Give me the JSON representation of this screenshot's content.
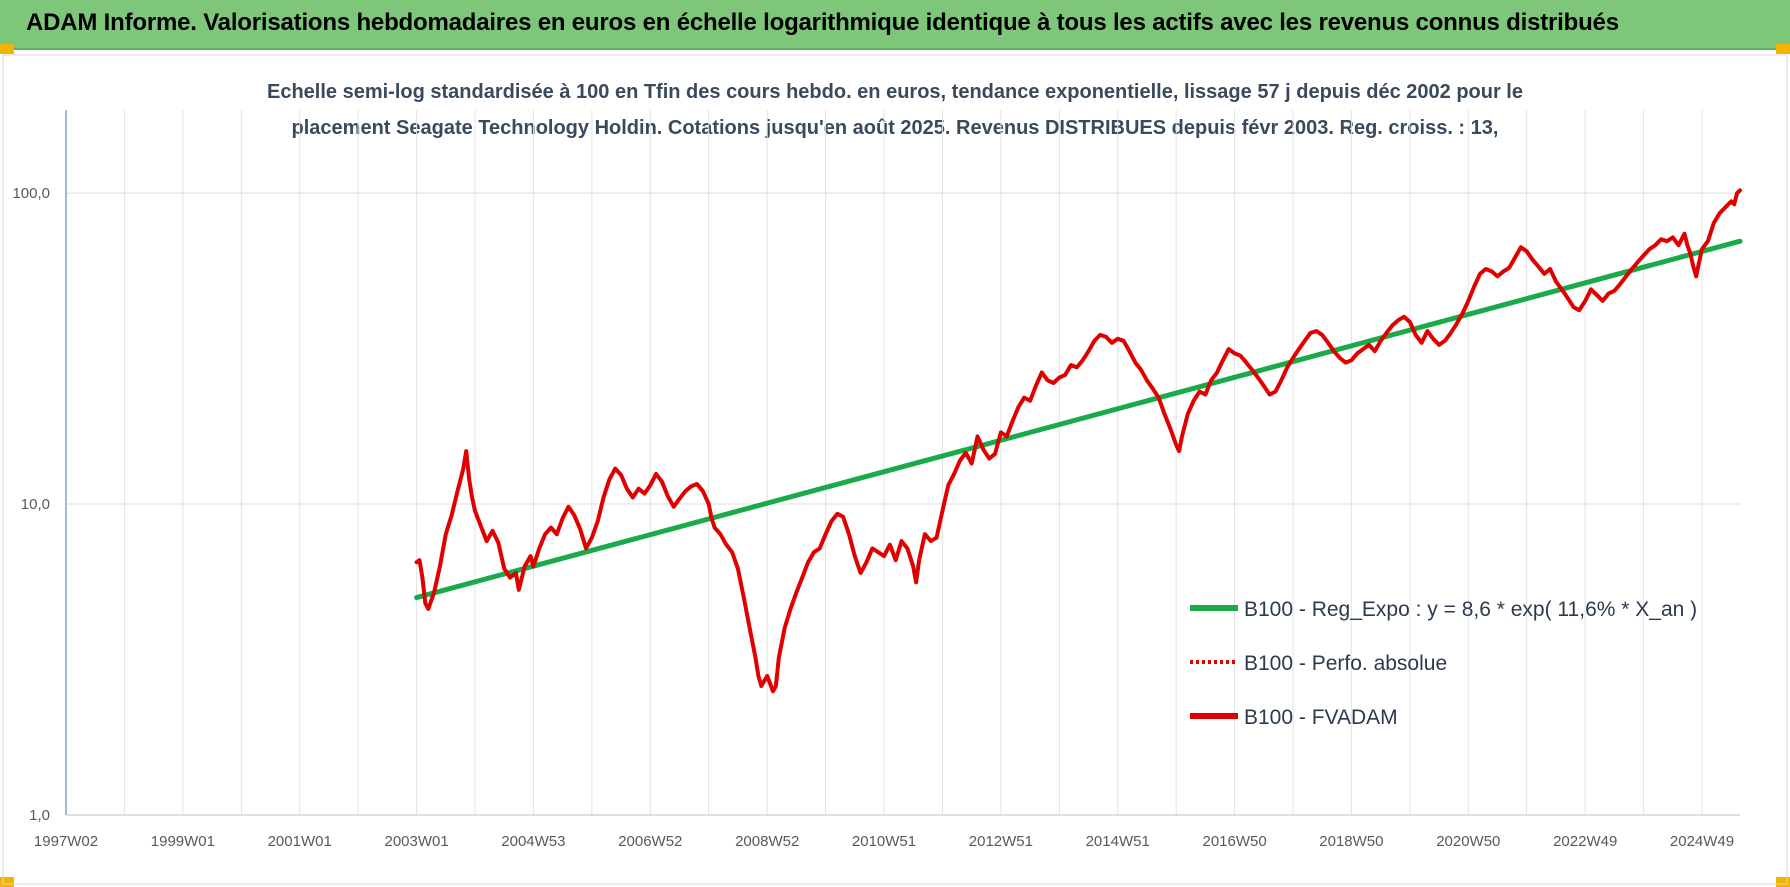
{
  "header": {
    "title": "ADAM Informe. Valorisations hebdomadaires en euros en échelle logarithmique identique à tous les actifs avec les revenus connus distribués"
  },
  "chart_data": {
    "type": "line",
    "title_lines": [
      "Echelle semi-log standardisée à 100 en Tfin des cours hebdo. en euros, tendance exponentielle, lissage 57 j depuis déc 2002 pour le",
      "placement Seagate Technology Holdin. Cotations jusqu'en août 2025. Revenus DISTRIBUES depuis févr 2003. Reg. croiss. : 13,"
    ],
    "y_scale": "log",
    "ylim": [
      1,
      185
    ],
    "y_ticks": [
      {
        "value": 1,
        "label": "1,0"
      },
      {
        "value": 10,
        "label": "10,0"
      },
      {
        "value": 100,
        "label": "100,0"
      }
    ],
    "xlim": [
      1997.0,
      2025.65
    ],
    "x_ticks": [
      {
        "value": 1997.0,
        "label": "1997W02"
      },
      {
        "value": 1999.0,
        "label": "1999W01"
      },
      {
        "value": 2001.0,
        "label": "2001W01"
      },
      {
        "value": 2003.0,
        "label": "2003W01"
      },
      {
        "value": 2005.0,
        "label": "2004W53"
      },
      {
        "value": 2007.0,
        "label": "2006W52"
      },
      {
        "value": 2009.0,
        "label": "2008W52"
      },
      {
        "value": 2011.0,
        "label": "2010W51"
      },
      {
        "value": 2013.0,
        "label": "2012W51"
      },
      {
        "value": 2015.0,
        "label": "2014W51"
      },
      {
        "value": 2017.0,
        "label": "2016W50"
      },
      {
        "value": 2019.0,
        "label": "2018W50"
      },
      {
        "value": 2021.0,
        "label": "2020W50"
      },
      {
        "value": 2023.0,
        "label": "2022W49"
      },
      {
        "value": 2025.0,
        "label": "2024W49"
      }
    ],
    "grid": true,
    "legend_position": "bottom-right",
    "series": [
      {
        "name": "B100 - Reg_Expo : y = 8,6 * exp( 11,6% *  X_an )",
        "color": "#1aaa4a",
        "style": "solid",
        "points": [
          [
            2003.0,
            5.0
          ],
          [
            2025.65,
            70.0
          ]
        ]
      },
      {
        "name": "B100 - Perfo. absolue",
        "color": "#e00000",
        "style": "dotted",
        "points": []
      },
      {
        "name": "B100 - FVADAM",
        "color": "#e00000",
        "style": "solid",
        "points": [
          [
            2003.0,
            6.5
          ],
          [
            2003.05,
            6.6
          ],
          [
            2003.1,
            5.8
          ],
          [
            2003.15,
            4.8
          ],
          [
            2003.2,
            4.6
          ],
          [
            2003.3,
            5.2
          ],
          [
            2003.4,
            6.3
          ],
          [
            2003.5,
            8.0
          ],
          [
            2003.6,
            9.2
          ],
          [
            2003.7,
            11.0
          ],
          [
            2003.8,
            13.0
          ],
          [
            2003.85,
            14.8
          ],
          [
            2003.9,
            12.0
          ],
          [
            2003.95,
            10.5
          ],
          [
            2004.0,
            9.5
          ],
          [
            2004.1,
            8.5
          ],
          [
            2004.2,
            7.6
          ],
          [
            2004.3,
            8.2
          ],
          [
            2004.4,
            7.5
          ],
          [
            2004.5,
            6.2
          ],
          [
            2004.6,
            5.8
          ],
          [
            2004.7,
            6.0
          ],
          [
            2004.75,
            5.3
          ],
          [
            2004.85,
            6.3
          ],
          [
            2004.95,
            6.8
          ],
          [
            2005.0,
            6.3
          ],
          [
            2005.1,
            7.2
          ],
          [
            2005.2,
            8.0
          ],
          [
            2005.3,
            8.4
          ],
          [
            2005.4,
            8.0
          ],
          [
            2005.5,
            9.0
          ],
          [
            2005.6,
            9.8
          ],
          [
            2005.7,
            9.2
          ],
          [
            2005.8,
            8.3
          ],
          [
            2005.9,
            7.2
          ],
          [
            2006.0,
            7.8
          ],
          [
            2006.1,
            8.8
          ],
          [
            2006.2,
            10.5
          ],
          [
            2006.3,
            12.0
          ],
          [
            2006.4,
            13.0
          ],
          [
            2006.5,
            12.4
          ],
          [
            2006.6,
            11.2
          ],
          [
            2006.7,
            10.5
          ],
          [
            2006.8,
            11.2
          ],
          [
            2006.9,
            10.8
          ],
          [
            2007.0,
            11.5
          ],
          [
            2007.1,
            12.5
          ],
          [
            2007.2,
            11.8
          ],
          [
            2007.3,
            10.6
          ],
          [
            2007.4,
            9.8
          ],
          [
            2007.5,
            10.4
          ],
          [
            2007.6,
            11.0
          ],
          [
            2007.7,
            11.4
          ],
          [
            2007.8,
            11.6
          ],
          [
            2007.9,
            11.0
          ],
          [
            2008.0,
            10.0
          ],
          [
            2008.05,
            9.0
          ],
          [
            2008.1,
            8.4
          ],
          [
            2008.2,
            8.0
          ],
          [
            2008.3,
            7.4
          ],
          [
            2008.4,
            7.0
          ],
          [
            2008.5,
            6.2
          ],
          [
            2008.6,
            5.0
          ],
          [
            2008.7,
            4.0
          ],
          [
            2008.8,
            3.2
          ],
          [
            2008.85,
            2.8
          ],
          [
            2008.9,
            2.6
          ],
          [
            2009.0,
            2.8
          ],
          [
            2009.1,
            2.5
          ],
          [
            2009.15,
            2.6
          ],
          [
            2009.2,
            3.2
          ],
          [
            2009.3,
            4.0
          ],
          [
            2009.4,
            4.6
          ],
          [
            2009.5,
            5.2
          ],
          [
            2009.6,
            5.8
          ],
          [
            2009.7,
            6.5
          ],
          [
            2009.8,
            7.0
          ],
          [
            2009.9,
            7.2
          ],
          [
            2010.0,
            8.0
          ],
          [
            2010.1,
            8.8
          ],
          [
            2010.2,
            9.3
          ],
          [
            2010.3,
            9.1
          ],
          [
            2010.4,
            8.0
          ],
          [
            2010.5,
            6.8
          ],
          [
            2010.6,
            6.0
          ],
          [
            2010.7,
            6.5
          ],
          [
            2010.8,
            7.2
          ],
          [
            2010.9,
            7.0
          ],
          [
            2011.0,
            6.8
          ],
          [
            2011.1,
            7.4
          ],
          [
            2011.2,
            6.6
          ],
          [
            2011.3,
            7.6
          ],
          [
            2011.4,
            7.2
          ],
          [
            2011.5,
            6.3
          ],
          [
            2011.55,
            5.6
          ],
          [
            2011.6,
            6.6
          ],
          [
            2011.7,
            8.0
          ],
          [
            2011.8,
            7.6
          ],
          [
            2011.9,
            7.8
          ],
          [
            2012.0,
            9.5
          ],
          [
            2012.1,
            11.5
          ],
          [
            2012.2,
            12.5
          ],
          [
            2012.3,
            13.8
          ],
          [
            2012.4,
            14.6
          ],
          [
            2012.5,
            13.5
          ],
          [
            2012.6,
            16.5
          ],
          [
            2012.7,
            15.0
          ],
          [
            2012.8,
            14.0
          ],
          [
            2012.9,
            14.5
          ],
          [
            2013.0,
            17.0
          ],
          [
            2013.1,
            16.5
          ],
          [
            2013.2,
            18.5
          ],
          [
            2013.3,
            20.5
          ],
          [
            2013.4,
            22.0
          ],
          [
            2013.5,
            21.5
          ],
          [
            2013.6,
            24.0
          ],
          [
            2013.7,
            26.5
          ],
          [
            2013.8,
            25.0
          ],
          [
            2013.9,
            24.5
          ],
          [
            2014.0,
            25.5
          ],
          [
            2014.1,
            26.0
          ],
          [
            2014.2,
            28.0
          ],
          [
            2014.3,
            27.5
          ],
          [
            2014.4,
            29.0
          ],
          [
            2014.5,
            31.0
          ],
          [
            2014.6,
            33.5
          ],
          [
            2014.7,
            35.0
          ],
          [
            2014.8,
            34.5
          ],
          [
            2014.9,
            33.0
          ],
          [
            2015.0,
            34.0
          ],
          [
            2015.1,
            33.5
          ],
          [
            2015.2,
            31.0
          ],
          [
            2015.3,
            28.5
          ],
          [
            2015.4,
            27.0
          ],
          [
            2015.5,
            25.0
          ],
          [
            2015.6,
            23.5
          ],
          [
            2015.7,
            22.0
          ],
          [
            2015.8,
            19.5
          ],
          [
            2015.9,
            17.5
          ],
          [
            2016.0,
            15.5
          ],
          [
            2016.05,
            14.8
          ],
          [
            2016.1,
            16.5
          ],
          [
            2016.2,
            19.5
          ],
          [
            2016.3,
            21.5
          ],
          [
            2016.4,
            23.0
          ],
          [
            2016.5,
            22.5
          ],
          [
            2016.6,
            25.0
          ],
          [
            2016.7,
            26.5
          ],
          [
            2016.8,
            29.0
          ],
          [
            2016.9,
            31.5
          ],
          [
            2017.0,
            30.5
          ],
          [
            2017.1,
            30.0
          ],
          [
            2017.2,
            28.5
          ],
          [
            2017.3,
            27.0
          ],
          [
            2017.4,
            25.5
          ],
          [
            2017.5,
            24.0
          ],
          [
            2017.6,
            22.5
          ],
          [
            2017.7,
            23.0
          ],
          [
            2017.8,
            25.0
          ],
          [
            2017.9,
            27.5
          ],
          [
            2018.0,
            29.5
          ],
          [
            2018.1,
            31.5
          ],
          [
            2018.2,
            33.5
          ],
          [
            2018.3,
            35.5
          ],
          [
            2018.4,
            36.0
          ],
          [
            2018.5,
            35.0
          ],
          [
            2018.6,
            33.0
          ],
          [
            2018.7,
            31.0
          ],
          [
            2018.8,
            29.5
          ],
          [
            2018.9,
            28.5
          ],
          [
            2019.0,
            29.0
          ],
          [
            2019.1,
            30.5
          ],
          [
            2019.2,
            31.5
          ],
          [
            2019.3,
            32.5
          ],
          [
            2019.4,
            31.0
          ],
          [
            2019.5,
            33.5
          ],
          [
            2019.6,
            35.5
          ],
          [
            2019.7,
            37.5
          ],
          [
            2019.8,
            39.0
          ],
          [
            2019.9,
            40.0
          ],
          [
            2020.0,
            38.5
          ],
          [
            2020.1,
            35.0
          ],
          [
            2020.2,
            33.0
          ],
          [
            2020.3,
            36.0
          ],
          [
            2020.4,
            34.0
          ],
          [
            2020.5,
            32.5
          ],
          [
            2020.6,
            33.5
          ],
          [
            2020.7,
            35.5
          ],
          [
            2020.8,
            38.0
          ],
          [
            2020.9,
            41.0
          ],
          [
            2021.0,
            45.0
          ],
          [
            2021.1,
            50.0
          ],
          [
            2021.2,
            55.0
          ],
          [
            2021.3,
            57.0
          ],
          [
            2021.4,
            56.0
          ],
          [
            2021.5,
            54.0
          ],
          [
            2021.6,
            56.0
          ],
          [
            2021.7,
            57.5
          ],
          [
            2021.8,
            62.0
          ],
          [
            2021.9,
            67.0
          ],
          [
            2022.0,
            65.0
          ],
          [
            2022.1,
            61.0
          ],
          [
            2022.2,
            58.0
          ],
          [
            2022.3,
            55.0
          ],
          [
            2022.4,
            57.0
          ],
          [
            2022.5,
            52.0
          ],
          [
            2022.6,
            49.0
          ],
          [
            2022.7,
            46.0
          ],
          [
            2022.8,
            43.0
          ],
          [
            2022.9,
            42.0
          ],
          [
            2023.0,
            45.0
          ],
          [
            2023.1,
            49.0
          ],
          [
            2023.2,
            47.0
          ],
          [
            2023.3,
            45.0
          ],
          [
            2023.4,
            47.5
          ],
          [
            2023.5,
            48.5
          ],
          [
            2023.6,
            51.0
          ],
          [
            2023.7,
            54.0
          ],
          [
            2023.8,
            57.0
          ],
          [
            2023.9,
            60.0
          ],
          [
            2024.0,
            63.0
          ],
          [
            2024.1,
            66.0
          ],
          [
            2024.2,
            68.0
          ],
          [
            2024.3,
            71.0
          ],
          [
            2024.4,
            70.0
          ],
          [
            2024.5,
            72.0
          ],
          [
            2024.6,
            68.0
          ],
          [
            2024.7,
            74.0
          ],
          [
            2024.75,
            68.0
          ],
          [
            2024.8,
            64.0
          ],
          [
            2024.85,
            58.0
          ],
          [
            2024.9,
            54.0
          ],
          [
            2024.95,
            60.0
          ],
          [
            2025.0,
            66.0
          ],
          [
            2025.1,
            70.0
          ],
          [
            2025.2,
            80.0
          ],
          [
            2025.3,
            86.0
          ],
          [
            2025.4,
            90.0
          ],
          [
            2025.5,
            94.0
          ],
          [
            2025.55,
            92.0
          ],
          [
            2025.6,
            100.0
          ],
          [
            2025.65,
            102.0
          ]
        ]
      }
    ]
  }
}
